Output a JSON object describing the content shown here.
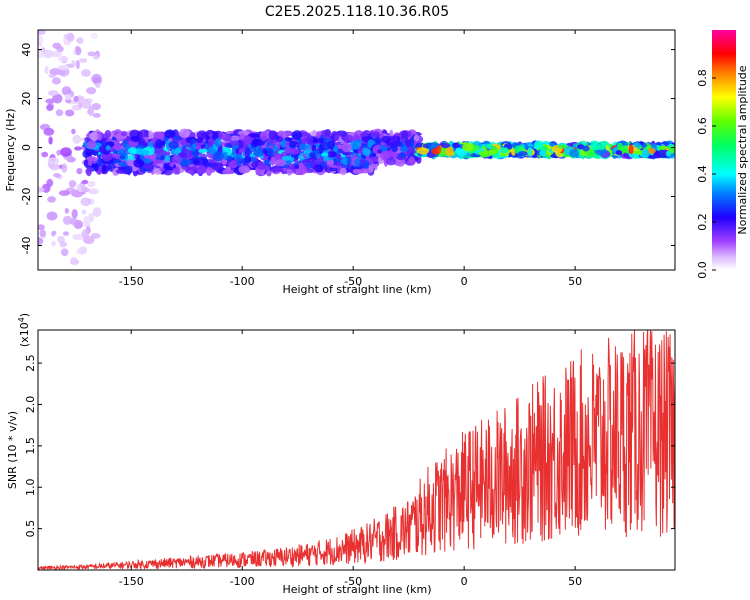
{
  "figure": {
    "title": "C2E5.2025.118.10.36.R05"
  },
  "chart_data": [
    {
      "type": "heatmap",
      "title": "C2E5.2025.118.10.36.R05",
      "xlabel": "Height of straight line (km)",
      "ylabel": "Frequency (Hz)",
      "xlim": [
        -192,
        95
      ],
      "ylim": [
        -50,
        48
      ],
      "xticks": [
        -150,
        -100,
        -50,
        0,
        50
      ],
      "xtick_labels": [
        "-150",
        "-100",
        "-50",
        "0",
        "50"
      ],
      "yticks": [
        -40,
        -20,
        0,
        20,
        40
      ],
      "ytick_labels": [
        "-40",
        "-20",
        "0",
        "20",
        "40"
      ],
      "colorbar": {
        "label": "Normalized spectral amplitude",
        "range": [
          0,
          1
        ],
        "ticks": [
          0.0,
          0.2,
          0.4,
          0.6,
          0.8
        ],
        "tick_labels": [
          "0.0",
          "0.2",
          "0.4",
          "0.6",
          "0.8"
        ],
        "colors": [
          "#ffffff",
          "#c080ff",
          "#8000ff",
          "#0000ff",
          "#00c0ff",
          "#00ffc0",
          "#00ff00",
          "#ffff00",
          "#ff8000",
          "#ff0000",
          "#ff00c0"
        ]
      },
      "description_points": [
        {
          "x_range": [
            -192,
            -165
          ],
          "freq_center": 0,
          "freq_spread": 48,
          "amplitude": 0.1
        },
        {
          "x_range": [
            -170,
            -40
          ],
          "freq_center": -2,
          "freq_spread": 8,
          "amplitude": 0.35
        },
        {
          "x_range": [
            -40,
            -20
          ],
          "freq_center": 0,
          "freq_spread": 6,
          "amplitude": 0.3
        },
        {
          "x_range": [
            -20,
            95
          ],
          "freq_center": -1,
          "freq_spread": 2,
          "amplitude": 0.8
        }
      ]
    },
    {
      "type": "line",
      "xlabel": "Height of straight line (km)",
      "ylabel": "SNR (10 * v/v)",
      "scale_label": "(x10",
      "scale_exp": "4",
      "scale_close": ")",
      "xlim": [
        -192,
        95
      ],
      "ylim": [
        0,
        2.9
      ],
      "xticks": [
        -150,
        -100,
        -50,
        0,
        50
      ],
      "xtick_labels": [
        "-150",
        "-100",
        "-50",
        "0",
        "50"
      ],
      "yticks": [
        0.5,
        1.0,
        1.5,
        2.0,
        2.5
      ],
      "ytick_labels": [
        "0.5",
        "1.0",
        "1.5",
        "2.0",
        "2.5"
      ],
      "color": "#e83030",
      "envelope_x": [
        -192,
        -170,
        -150,
        -130,
        -110,
        -90,
        -70,
        -55,
        -45,
        -35,
        -25,
        -20,
        -15,
        -10,
        -5,
        0,
        10,
        20,
        30,
        40,
        50,
        60,
        70,
        80,
        95
      ],
      "envelope_y": [
        0.04,
        0.06,
        0.1,
        0.14,
        0.18,
        0.22,
        0.3,
        0.4,
        0.5,
        0.65,
        0.8,
        1.0,
        1.2,
        1.3,
        1.4,
        1.55,
        1.7,
        1.85,
        2.05,
        2.2,
        2.4,
        2.5,
        2.6,
        2.7,
        2.6
      ]
    }
  ]
}
